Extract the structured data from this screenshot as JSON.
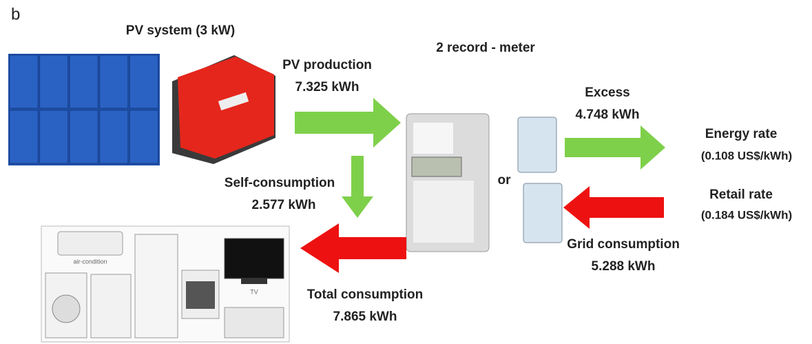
{
  "panel_label": "b",
  "pv_system": {
    "title": "PV system (3 kW)"
  },
  "meter": {
    "title": "2 record - meter",
    "or": "or"
  },
  "flows": {
    "pv_production": {
      "label": "PV production",
      "value": "7.325 kWh"
    },
    "self_consumption": {
      "label": "Self-consumption",
      "value": "2.577 kWh"
    },
    "excess": {
      "label": "Excess",
      "value": "4.748 kWh"
    },
    "grid_consumption": {
      "label": "Grid consumption",
      "value": "5.288 kWh"
    },
    "total_consumption": {
      "label": "Total consumption",
      "value": "7.865 kWh"
    }
  },
  "rates": {
    "energy_rate": {
      "label": "Energy rate",
      "value": "(0.108 US$/kWh)"
    },
    "retail_rate": {
      "label": "Retail rate",
      "value": "(0.184 US$/kWh)"
    }
  },
  "appliances": {
    "air_condition": "air-condition",
    "tv": "TV"
  }
}
